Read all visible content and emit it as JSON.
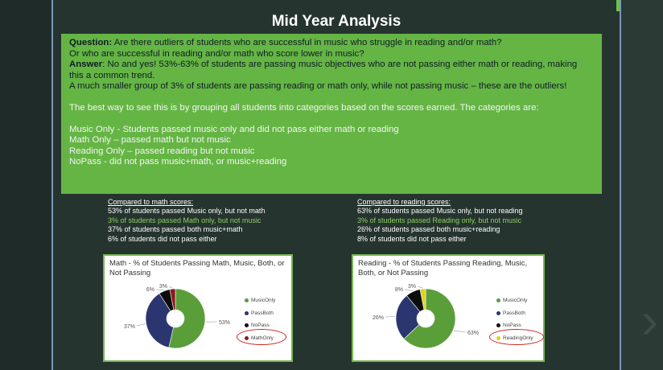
{
  "title": "Mid Year Analysis",
  "summary": {
    "question_label": "Question:",
    "question_text": " Are there outliers of students who are successful in music who struggle in reading and/or math?",
    "question_text_2": "Or who are successful in reading and/or math who score lower in music?",
    "answer_label": "Answer",
    "answer_text": ": No and yes! 53%-63% of students are passing music objectives who are not passing either math or reading, making this a common trend.",
    "answer_text_2": "A much smaller group of 3% of students are passing reading or math only, while not passing music – these are the outliers!",
    "grouping_intro": "The best way to see this is by grouping all students into categories based on the scores earned. The categories are:",
    "categories": [
      "Music Only - Students passed music only and did not pass either math or reading",
      "Math Only – passed math but not music",
      "Reading Only – passed reading but not music",
      "NoPass - did not pass music+math, or music+reading"
    ]
  },
  "math_stats": {
    "header": "Compared to math scores:",
    "lines": [
      "53% of students passed Music only, but not math",
      "3% of students passed Math only, but not music",
      "37% of students passed both music+math",
      "6% of students did not pass either"
    ]
  },
  "reading_stats": {
    "header": "Compared to reading scores:",
    "lines": [
      "63% of students passed Music only, but not reading",
      "3% of students passed Reading only, but not music",
      "26% of students passed both music+reading",
      "8% of students did not pass either"
    ]
  },
  "chart_data": [
    {
      "type": "pie",
      "title": "Math - % of Students Passing Math, Music, Both, or Not Passing",
      "labels": [
        "MusicOnly",
        "PassBoth",
        "NoPass",
        "MathOnly"
      ],
      "values": [
        53,
        37,
        6,
        3
      ],
      "value_labels": [
        "53%",
        "37%",
        "6%",
        "3%"
      ],
      "colors": [
        "#5a9e3a",
        "#2b3670",
        "#0d0d0d",
        "#8b1a1a"
      ],
      "legend_position": "right",
      "highlight": "MathOnly"
    },
    {
      "type": "pie",
      "title": "Reading - % of Students Passing Reading, Music, Both, or Not Passing",
      "labels": [
        "MusicOnly",
        "PassBoth",
        "NoPass",
        "ReadingOnly"
      ],
      "values": [
        63,
        26,
        8,
        3
      ],
      "value_labels": [
        "63%",
        "26%",
        "8%",
        "3%"
      ],
      "colors": [
        "#5a9e3a",
        "#2b3670",
        "#0d0d0d",
        "#e0d020"
      ],
      "legend_position": "right",
      "highlight": "ReadingOnly"
    }
  ]
}
